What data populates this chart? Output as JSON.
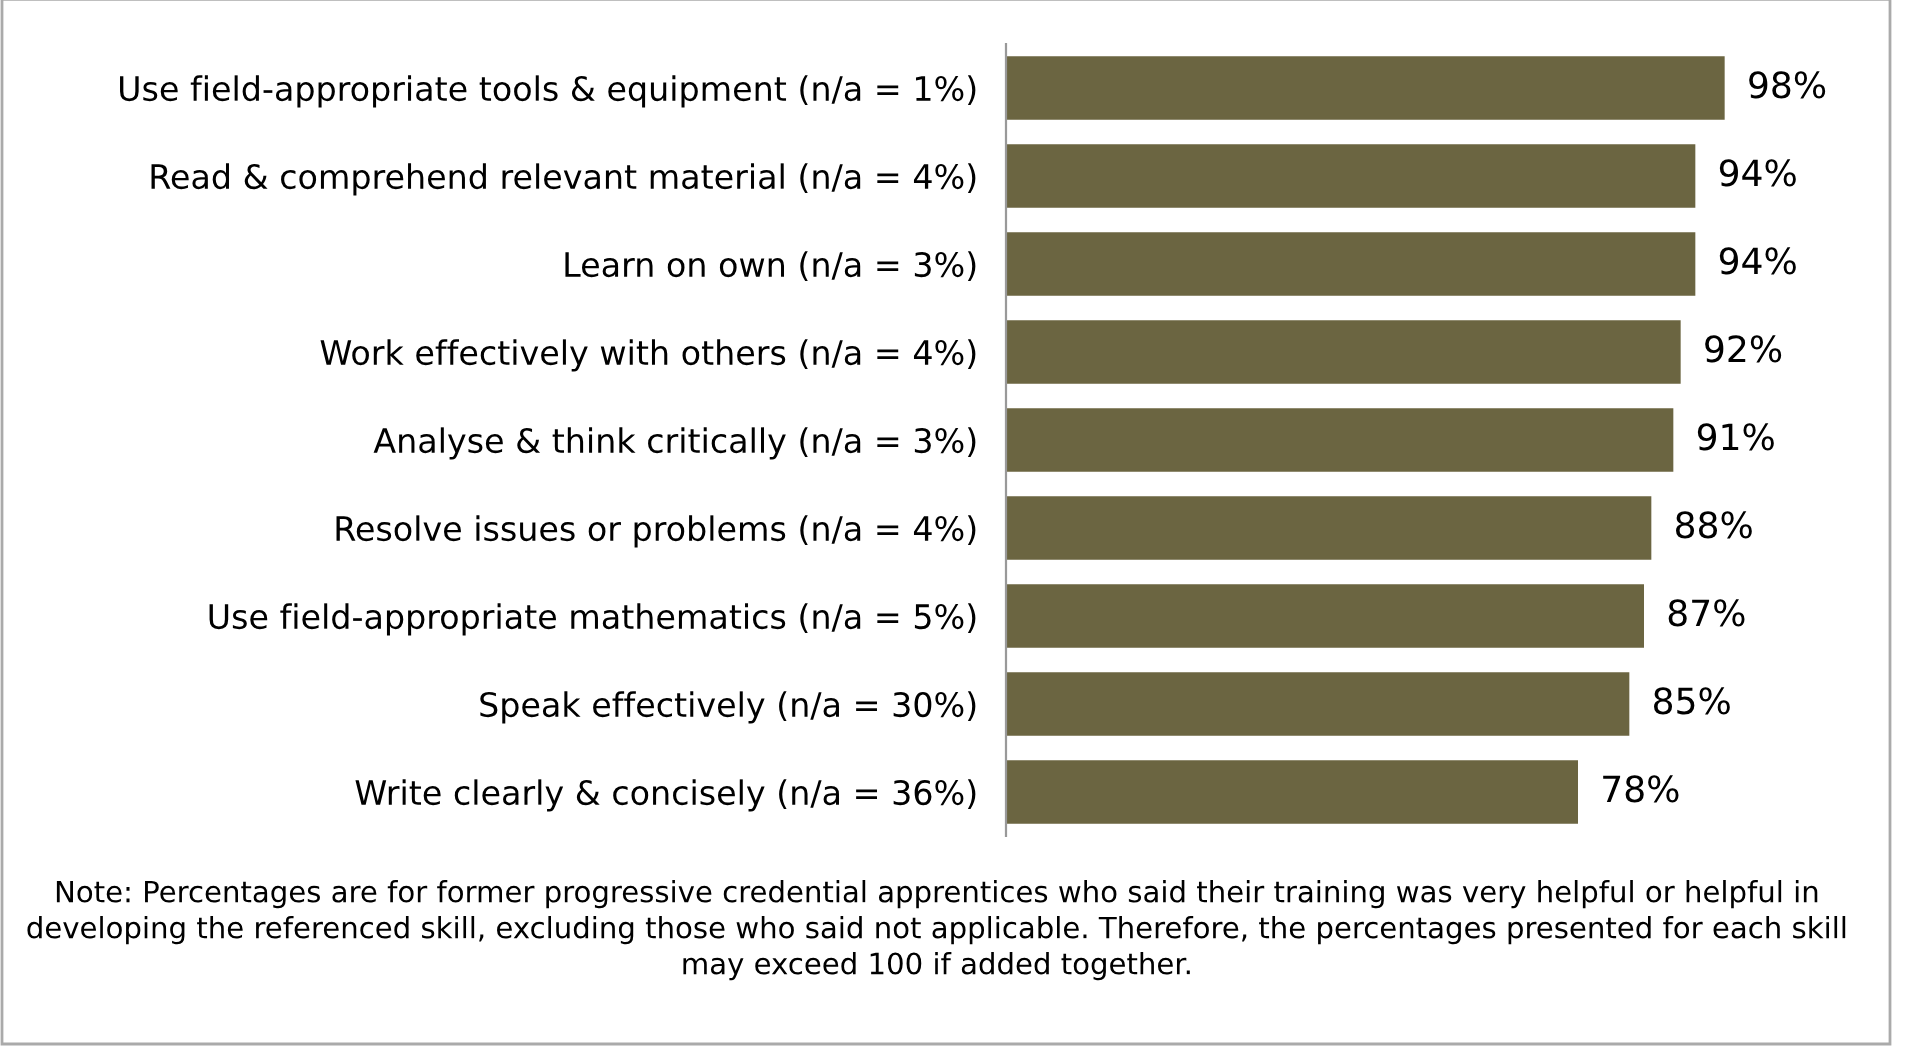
{
  "chart_data": {
    "type": "bar",
    "orientation": "horizontal",
    "categories": [
      "Use field-appropriate tools & equipment (n/a = 1%)",
      "Read & comprehend relevant material (n/a = 4%)",
      "Learn on own (n/a = 3%)",
      "Work effectively with others (n/a = 4%)",
      "Analyse & think critically (n/a = 3%)",
      "Resolve issues or problems (n/a = 4%)",
      "Use field-appropriate mathematics (n/a = 5%)",
      "Speak effectively (n/a = 30%)",
      "Write clearly & concisely (n/a = 36%)"
    ],
    "values": [
      98,
      94,
      94,
      92,
      91,
      88,
      87,
      85,
      78
    ],
    "value_labels": [
      "98%",
      "94%",
      "94%",
      "92%",
      "91%",
      "88%",
      "87%",
      "85%",
      "78%"
    ],
    "color": "#6b6541",
    "xlim": [
      0,
      120
    ],
    "tick_labels": "y",
    "grid": false,
    "legend": false,
    "annotations": [
      "Note: Percentages are for former progressive credential apprentices who said their training was very helpful or helpful in developing the referenced skill, excluding those who said not applicable. Therefore, the percentages presented for each skill may exceed 100 if added together."
    ]
  }
}
